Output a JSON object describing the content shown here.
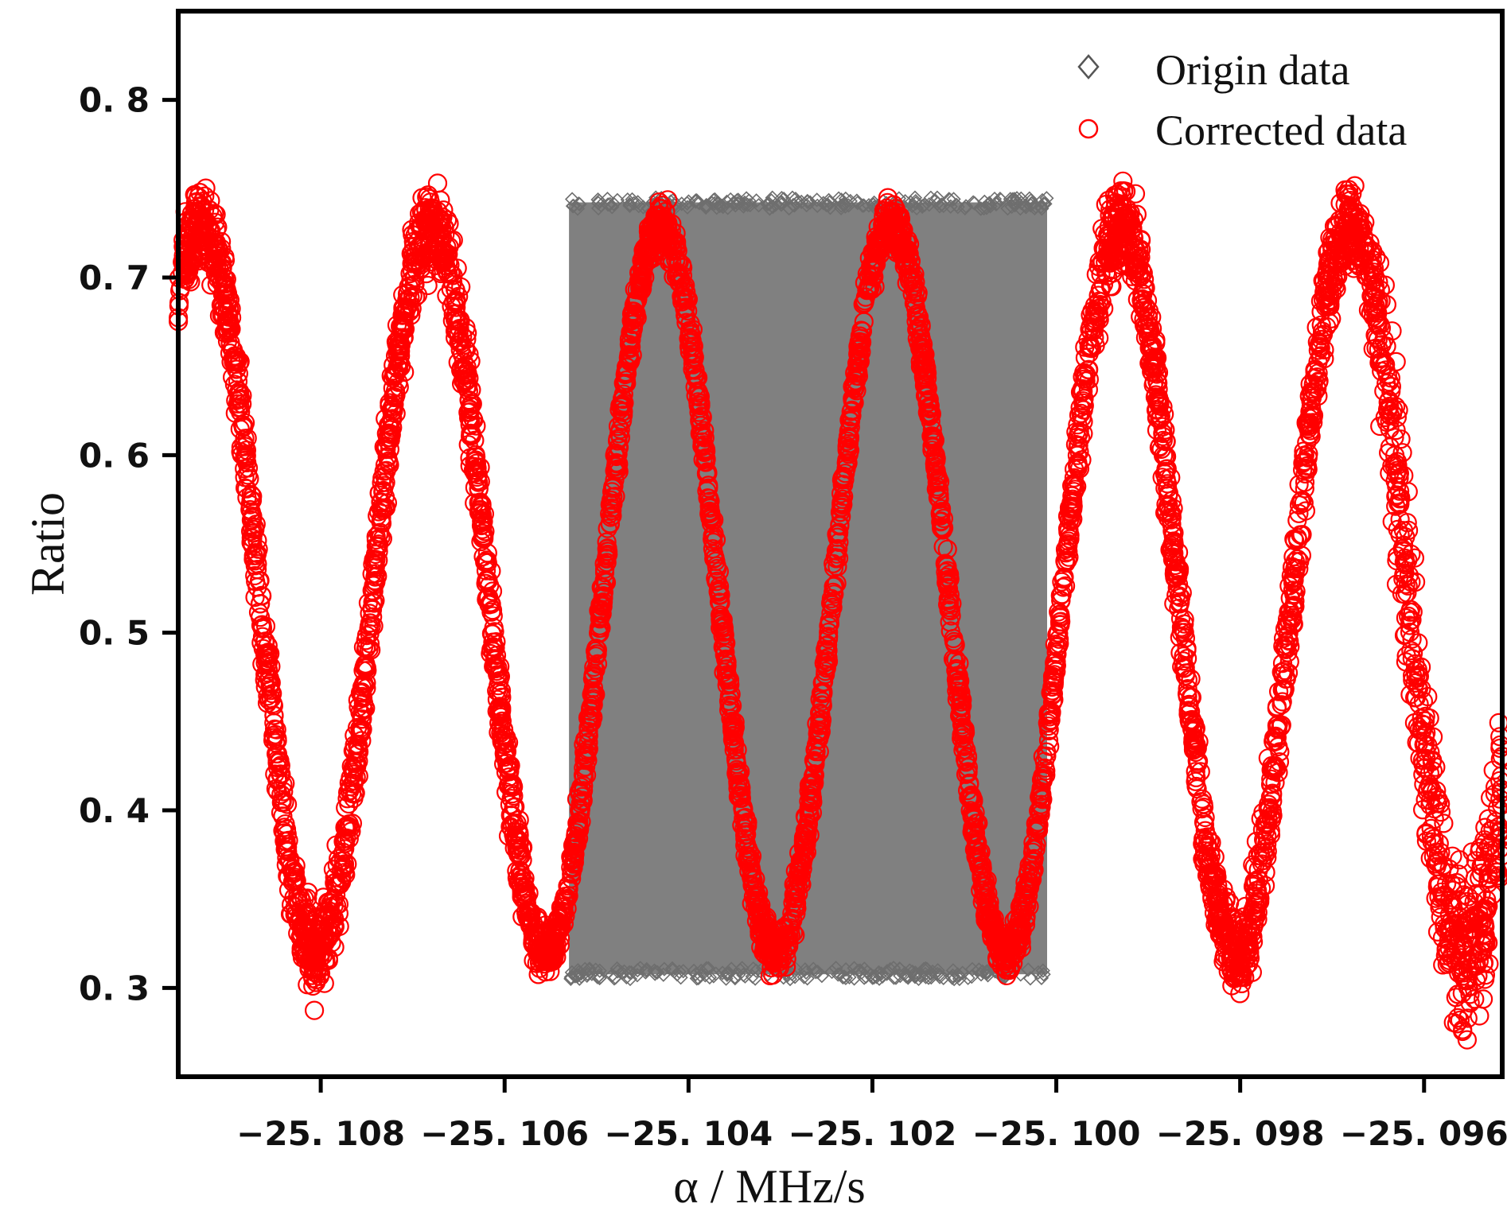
{
  "chart_data": {
    "type": "scatter",
    "title": "",
    "xlabel": "α  / MHz/s",
    "ylabel": "Ratio",
    "xlim": [
      -25.10955,
      -25.09515
    ],
    "ylim": [
      0.25,
      0.85
    ],
    "xticks": [
      -25.108,
      -25.106,
      -25.104,
      -25.102,
      -25.1,
      -25.098,
      -25.096
    ],
    "xtick_labels": [
      "−25. 108",
      "−25. 106",
      "−25. 104",
      "−25. 102",
      "−25. 100",
      "−25. 098",
      "−25. 096"
    ],
    "yticks": [
      0.3,
      0.4,
      0.5,
      0.6,
      0.7,
      0.8
    ],
    "ytick_labels": [
      "0. 3",
      "0. 4",
      "0. 5",
      "0. 6",
      "0. 7",
      "0. 8"
    ],
    "legend_position": "top-right",
    "series": [
      {
        "name": "Origin data",
        "marker": "diamond",
        "color": "#808080",
        "x_range": [
          -25.1053,
          -25.1001
        ],
        "y_range": [
          0.305,
          0.745
        ],
        "note": "dense band of points filling the region"
      },
      {
        "name": "Corrected data",
        "marker": "circle",
        "color": "#ff0000",
        "curve": "sinusoid",
        "peaks_x": [
          -25.1093,
          -25.1068,
          -25.1043,
          -25.1018,
          -25.0993,
          -25.0968
        ],
        "peak_y": 0.73,
        "troughs_x": [
          -25.108,
          -25.1055,
          -25.103,
          -25.1005,
          -25.098,
          -25.0955
        ],
        "trough_y": 0.32,
        "x_range": [
          -25.10955,
          -25.09515
        ]
      }
    ]
  }
}
